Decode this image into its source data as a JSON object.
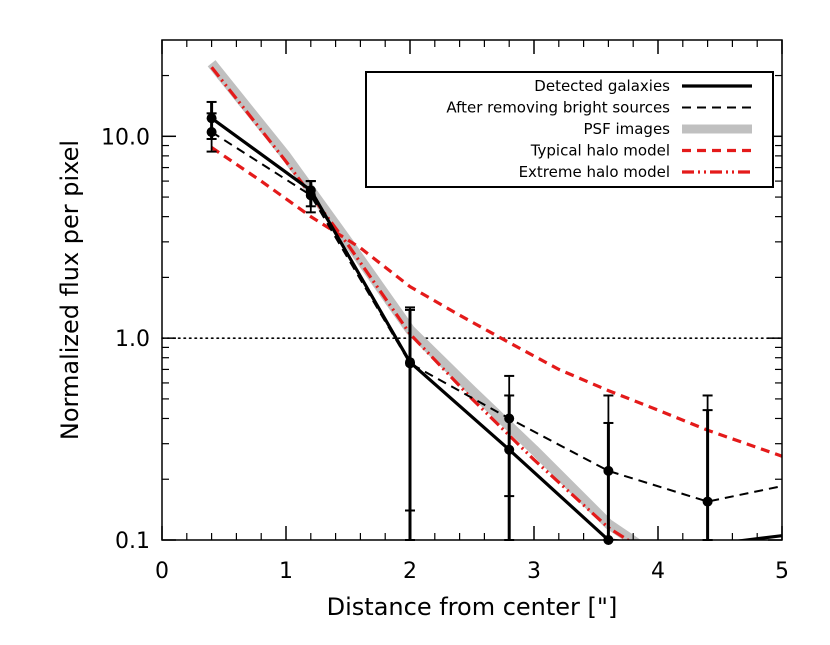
{
  "chart_data": {
    "type": "line",
    "title": "",
    "xlabel": "Distance from center [\"]",
    "ylabel": "Normalized flux per pixel",
    "xlim": [
      0,
      5
    ],
    "ylim": [
      0.1,
      30
    ],
    "yscale": "log",
    "x_ticks": [
      0,
      1,
      2,
      3,
      4,
      5
    ],
    "x_tick_labels": [
      "0",
      "1",
      "2",
      "3",
      "4",
      "5"
    ],
    "y_ticks": [
      0.1,
      1.0,
      10.0
    ],
    "y_tick_labels": [
      "0.1",
      "1.0",
      "10.0"
    ],
    "reference_line": {
      "y": 1.0,
      "style": "dotted"
    },
    "legend_position": "top-right",
    "series": [
      {
        "name": "Detected galaxies",
        "style": "solid",
        "color": "#000000",
        "width": 3.2,
        "points": [
          [
            0.4,
            12.3
          ],
          [
            1.2,
            5.4
          ],
          [
            2.0,
            0.76
          ],
          [
            2.8,
            0.28
          ],
          [
            3.6,
            0.1
          ],
          [
            3.85,
            0.097
          ],
          [
            4.6,
            0.098
          ],
          [
            5.0,
            0.105
          ]
        ],
        "markers": [
          [
            0.4,
            12.3
          ],
          [
            1.2,
            5.4
          ],
          [
            2.0,
            0.76
          ],
          [
            2.8,
            0.28
          ],
          [
            3.6,
            0.1
          ]
        ],
        "errors": [
          [
            0.4,
            9.7,
            14.8
          ],
          [
            1.2,
            4.5,
            6.0
          ],
          [
            2.0,
            0.1,
            1.38
          ],
          [
            2.8,
            0.1,
            0.52
          ],
          [
            3.6,
            0.1,
            0.38
          ],
          [
            4.4,
            0.1,
            0.44
          ]
        ]
      },
      {
        "name": "After removing bright sources",
        "style": "dashed",
        "color": "#000000",
        "width": 2,
        "points": [
          [
            0.4,
            10.5
          ],
          [
            1.2,
            5.1
          ],
          [
            2.0,
            0.75
          ],
          [
            2.8,
            0.4
          ],
          [
            3.6,
            0.22
          ],
          [
            4.4,
            0.155
          ],
          [
            5.0,
            0.185
          ]
        ],
        "markers": [
          [
            0.4,
            10.5
          ],
          [
            1.2,
            5.1
          ],
          [
            2.0,
            0.75
          ],
          [
            2.8,
            0.4
          ],
          [
            3.6,
            0.22
          ],
          [
            4.4,
            0.155
          ]
        ],
        "errors": [
          [
            0.4,
            8.4,
            13.0
          ],
          [
            1.2,
            4.2,
            6.0
          ],
          [
            2.0,
            0.14,
            1.42
          ],
          [
            2.8,
            0.165,
            0.65
          ],
          [
            3.6,
            0.1,
            0.52
          ],
          [
            4.4,
            0.1,
            0.52
          ]
        ]
      },
      {
        "name": "PSF images",
        "style": "solid",
        "color": "#c0c0c0",
        "width": 10,
        "points": [
          [
            0.4,
            23
          ],
          [
            1.0,
            8.0
          ],
          [
            1.5,
            3.0
          ],
          [
            2.0,
            1.1
          ],
          [
            2.5,
            0.55
          ],
          [
            3.0,
            0.28
          ],
          [
            3.6,
            0.12
          ],
          [
            3.9,
            0.09
          ]
        ],
        "markers": [],
        "errors": []
      },
      {
        "name": "Typical halo model",
        "style": "dashed",
        "color": "#e41a1a",
        "width": 3.2,
        "points": [
          [
            0.4,
            8.8
          ],
          [
            0.8,
            6.0
          ],
          [
            1.2,
            4.0
          ],
          [
            1.6,
            2.8
          ],
          [
            2.0,
            1.8
          ],
          [
            2.4,
            1.3
          ],
          [
            2.8,
            0.95
          ],
          [
            3.2,
            0.7
          ],
          [
            3.6,
            0.55
          ],
          [
            4.0,
            0.44
          ],
          [
            4.4,
            0.35
          ],
          [
            5.0,
            0.26
          ]
        ],
        "markers": [],
        "errors": []
      },
      {
        "name": "Extreme halo model",
        "style": "dashdot",
        "color": "#e41a1a",
        "width": 3.2,
        "points": [
          [
            0.4,
            22
          ],
          [
            1.0,
            7.5
          ],
          [
            1.5,
            2.9
          ],
          [
            2.0,
            1.05
          ],
          [
            2.5,
            0.5
          ],
          [
            3.0,
            0.25
          ],
          [
            3.6,
            0.115
          ],
          [
            3.85,
            0.092
          ]
        ],
        "markers": [],
        "errors": []
      }
    ]
  },
  "colors": {
    "axis": "#000000",
    "accent_red": "#e41a1a",
    "psf_gray": "#c0c0c0"
  }
}
